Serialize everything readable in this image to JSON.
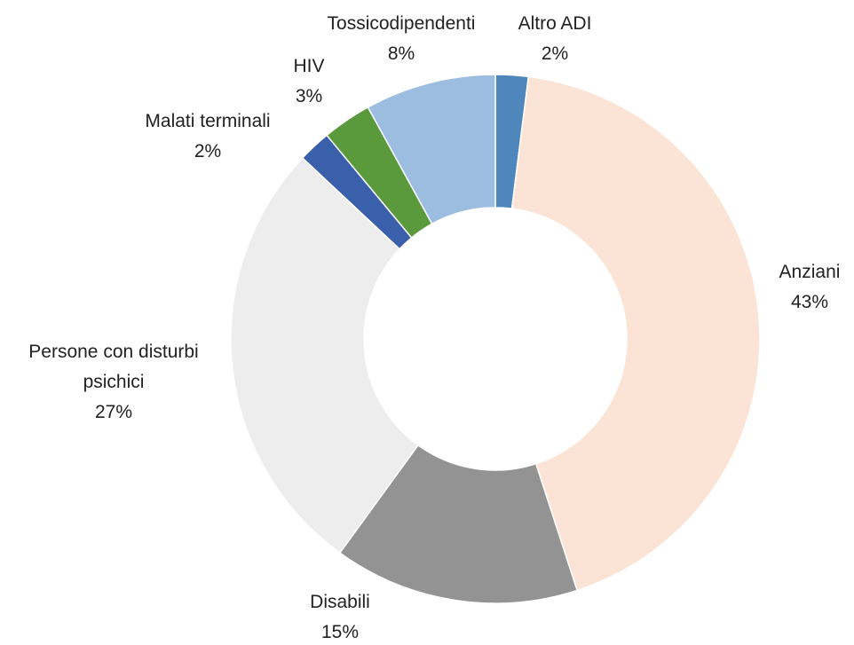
{
  "chart_data": {
    "type": "donut",
    "categories": [
      "Altro ADI",
      "Anziani",
      "Disabili",
      "Persone con disturbi psichici",
      "Malati terminali",
      "HIV",
      "Tossicodipendenti"
    ],
    "values": [
      2,
      43,
      15,
      27,
      2,
      3,
      8
    ],
    "value_labels": [
      "2%",
      "43%",
      "15%",
      "27%",
      "2%",
      "3%",
      "8%"
    ],
    "colors": [
      "#4f87bd",
      "#fbe4d5",
      "#939393",
      "#ededed",
      "#3a5fab",
      "#5b9a3c",
      "#9dbde0"
    ]
  }
}
